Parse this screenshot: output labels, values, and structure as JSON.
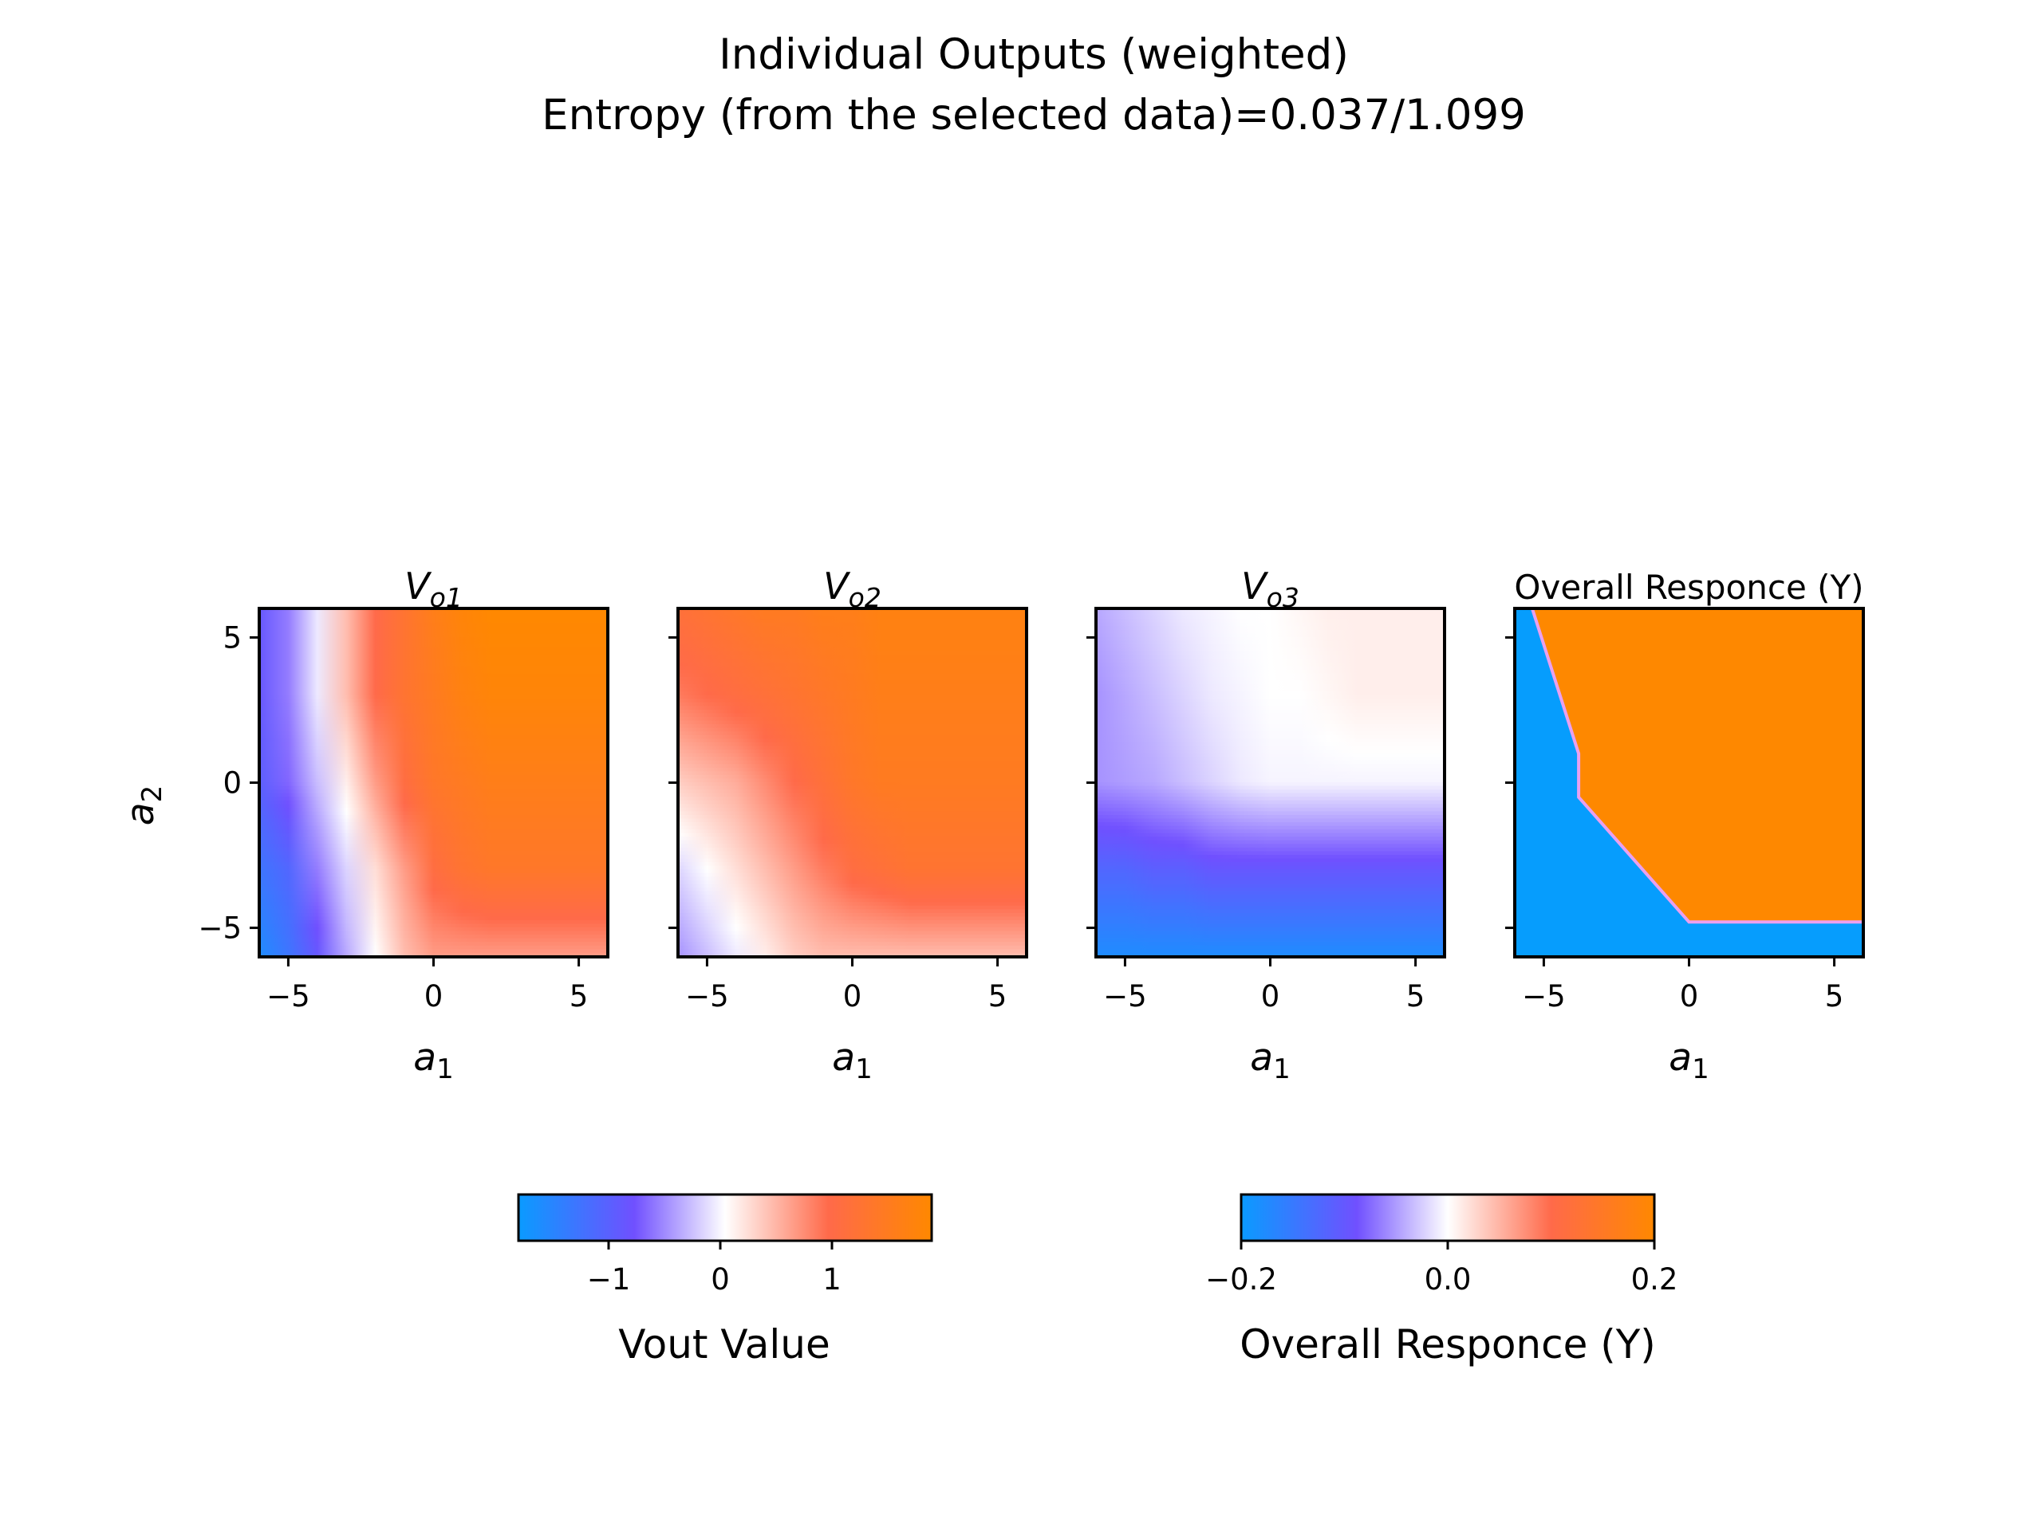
{
  "figure": {
    "title_line1": "Individual Outputs (weighted)",
    "title_line2": "Entropy (from the selected data)=0.037/1.099"
  },
  "chart_data": [
    {
      "type": "heatmap",
      "title": "V_o1",
      "xlabel": "a_1",
      "ylabel": "a_2",
      "xlim": [
        -6,
        6
      ],
      "ylim": [
        -6,
        6
      ],
      "xticks": [
        -5,
        0,
        5
      ],
      "yticks": [
        -5,
        0,
        5
      ],
      "value_range": [
        -1.8,
        1.8
      ],
      "approx_grid": {
        "x": [
          -6,
          -5,
          -4,
          -3,
          -2,
          -1,
          0,
          1,
          2,
          3,
          4,
          5,
          6
        ],
        "y": [
          6,
          3,
          0,
          -3,
          -6
        ],
        "z": [
          [
            -0.9,
            -0.6,
            -0.1,
            0.4,
            0.9,
            1.2,
            1.5,
            1.7,
            1.8,
            1.8,
            1.8,
            1.8,
            1.8
          ],
          [
            -0.9,
            -0.6,
            -0.1,
            0.4,
            0.9,
            1.2,
            1.4,
            1.6,
            1.7,
            1.7,
            1.7,
            1.7,
            1.7
          ],
          [
            -1.0,
            -0.7,
            -0.3,
            0.1,
            0.6,
            1.0,
            1.3,
            1.4,
            1.5,
            1.5,
            1.5,
            1.5,
            1.5
          ],
          [
            -1.3,
            -1.1,
            -0.6,
            -0.2,
            0.2,
            0.6,
            1.0,
            1.2,
            1.3,
            1.3,
            1.3,
            1.3,
            1.3
          ],
          [
            -1.6,
            -1.3,
            -0.9,
            -0.4,
            0.0,
            0.4,
            0.6,
            0.6,
            0.6,
            0.6,
            0.6,
            0.6,
            0.6
          ]
        ]
      }
    },
    {
      "type": "heatmap",
      "title": "V_o2",
      "xlabel": "a_1",
      "xlim": [
        -6,
        6
      ],
      "ylim": [
        -6,
        6
      ],
      "xticks": [
        -5,
        0,
        5
      ],
      "approx_grid": {
        "x": [
          -6,
          -5,
          -4,
          -3,
          -2,
          -1,
          0,
          1,
          2,
          3,
          4,
          5,
          6
        ],
        "y": [
          6,
          3,
          0,
          -3,
          -6
        ],
        "z": [
          [
            1.1,
            1.2,
            1.3,
            1.4,
            1.4,
            1.5,
            1.5,
            1.6,
            1.6,
            1.6,
            1.6,
            1.6,
            1.6
          ],
          [
            0.8,
            0.9,
            1.0,
            1.1,
            1.2,
            1.3,
            1.4,
            1.5,
            1.5,
            1.5,
            1.5,
            1.5,
            1.5
          ],
          [
            0.3,
            0.4,
            0.5,
            0.7,
            0.9,
            1.1,
            1.3,
            1.4,
            1.4,
            1.4,
            1.4,
            1.4,
            1.4
          ],
          [
            -0.2,
            0.0,
            0.2,
            0.4,
            0.6,
            0.8,
            1.0,
            1.1,
            1.2,
            1.2,
            1.2,
            1.2,
            1.2
          ],
          [
            -0.5,
            -0.3,
            -0.1,
            0.1,
            0.3,
            0.4,
            0.4,
            0.4,
            0.4,
            0.4,
            0.4,
            0.4,
            0.4
          ]
        ]
      }
    },
    {
      "type": "heatmap",
      "title": "V_o3",
      "xlabel": "a_1",
      "xlim": [
        -6,
        6
      ],
      "ylim": [
        -6,
        6
      ],
      "xticks": [
        -5,
        0,
        5
      ],
      "approx_grid": {
        "x": [
          -6,
          -5,
          -4,
          -3,
          -2,
          -1,
          0,
          1,
          2,
          3,
          4,
          5,
          6
        ],
        "y": [
          6,
          3,
          0,
          -3,
          -6
        ],
        "z": [
          [
            -0.4,
            -0.3,
            -0.2,
            -0.1,
            -0.05,
            0.0,
            0.0,
            0.05,
            0.1,
            0.1,
            0.1,
            0.1,
            0.1
          ],
          [
            -0.5,
            -0.4,
            -0.3,
            -0.2,
            -0.1,
            -0.05,
            0.0,
            0.0,
            0.05,
            0.1,
            0.1,
            0.1,
            0.1
          ],
          [
            -0.5,
            -0.45,
            -0.4,
            -0.3,
            -0.2,
            -0.1,
            -0.05,
            -0.05,
            -0.05,
            -0.05,
            -0.05,
            -0.05,
            -0.05
          ],
          [
            -1.1,
            -1.1,
            -1.0,
            -1.0,
            -0.9,
            -0.9,
            -0.9,
            -0.9,
            -0.9,
            -0.9,
            -0.9,
            -0.9,
            -0.9
          ],
          [
            -1.6,
            -1.6,
            -1.6,
            -1.6,
            -1.6,
            -1.6,
            -1.6,
            -1.6,
            -1.6,
            -1.6,
            -1.6,
            -1.6,
            -1.6
          ]
        ]
      }
    },
    {
      "type": "heatmap",
      "title": "Overall Responce (Y)",
      "xlabel": "a_1",
      "xlim": [
        -6,
        6
      ],
      "ylim": [
        -6,
        6
      ],
      "xticks": [
        -5,
        0,
        5
      ],
      "value_range": [
        -0.2,
        0.2
      ],
      "boundary": {
        "description": "binary regions: negative (blue) lower-left, positive (orange) upper-right",
        "points": [
          [
            -5.4,
            6.0
          ],
          [
            -3.8,
            1.0
          ],
          [
            -3.8,
            -0.5
          ],
          [
            0.0,
            -4.8
          ],
          [
            6.0,
            -4.8
          ]
        ]
      }
    }
  ],
  "colorbars": [
    {
      "label": "Vout Value",
      "range": [
        -1.8,
        1.8
      ],
      "ticks": [
        -1,
        0,
        1
      ],
      "tick_labels": [
        "−1",
        "0",
        "1"
      ]
    },
    {
      "label": "Overall Responce (Y)",
      "range": [
        -0.2,
        0.2
      ],
      "ticks": [
        -0.2,
        0.0,
        0.2
      ],
      "tick_labels": [
        "−0.2",
        "0.0",
        "0.2"
      ]
    }
  ],
  "axis_text": {
    "xlabel_base": "a",
    "xlabel_sub": "1",
    "ylabel_base": "a",
    "ylabel_sub": "2",
    "v_base": "V",
    "titles_sub": [
      "o1",
      "o2",
      "o3"
    ],
    "overall_title": "Overall Responce (Y)",
    "xtick_labels": [
      "−5",
      "0",
      "5"
    ],
    "ytick_labels": [
      "5",
      "0",
      "−5"
    ]
  },
  "colors": {
    "blue": "#0a9bff",
    "purple": "#7050ff",
    "white": "#ffffff",
    "salmon": "#ff6a4a",
    "orange": "#ff8800",
    "overall_blue": "#069dfd",
    "overall_orange": "#fe8800"
  }
}
